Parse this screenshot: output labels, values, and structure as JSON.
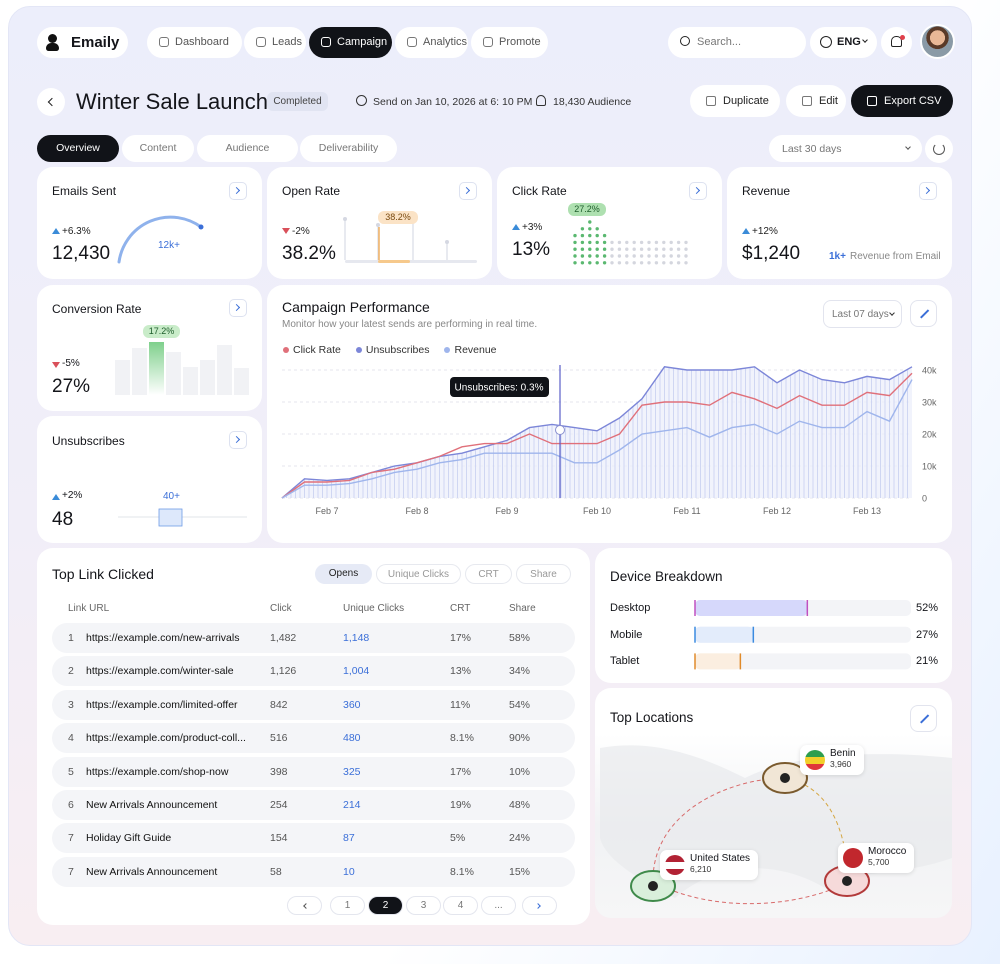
{
  "nav": {
    "brand": "Emaily",
    "items": [
      "Dashboard",
      "Leads",
      "Campaign",
      "Analytics",
      "Promote"
    ],
    "search": "Search...",
    "language": "ENG"
  },
  "header": {
    "title": "Winter Sale Launch",
    "status": "Completed",
    "schedule": "Send on Jan 10, 2026 at 6: 10 PM",
    "audience": "18,430 Audience",
    "actions": [
      "Duplicate",
      "Edit",
      "Export CSV"
    ]
  },
  "tabs": [
    "Overview",
    "Content",
    "Audience",
    "Deliverability"
  ],
  "range": "Last 30 days",
  "kpis": [
    {
      "title": "Emails Sent",
      "change": "+6.3%",
      "value": "12,430",
      "gauge_label": "12k+"
    },
    {
      "title": "Open Rate",
      "change": "-2%",
      "value": "38.2%",
      "badge": "38.2%"
    },
    {
      "title": "Click Rate",
      "change": "+3%",
      "value": "13%",
      "badge": "27.2%"
    },
    {
      "title": "Revenue",
      "change": "+12%",
      "value": "$1,240",
      "note_value": "1k+",
      "note": "Revenue from Email"
    }
  ],
  "conversion": {
    "title": "Conversion Rate",
    "change": "-5%",
    "value": "27%",
    "badge": "17.2%"
  },
  "unsubscribes": {
    "title": "Unsubscribes",
    "change": "+2%",
    "value": "48",
    "marker": "40+"
  },
  "chart_data": {
    "type": "line",
    "title": "Campaign Performance",
    "subtitle": "Monitor how your latest sends are performing in real time.",
    "range": "Last 07 days",
    "categories": [
      null,
      null,
      "Feb 7",
      null,
      null,
      null,
      "Feb 8",
      null,
      null,
      null,
      "Feb 9",
      null,
      null,
      null,
      "Feb 10",
      null,
      null,
      null,
      "Feb 11",
      null,
      null,
      null,
      "Feb 12",
      null,
      null,
      null,
      "Feb 13",
      null,
      null
    ],
    "series": [
      {
        "name": "Click Rate",
        "color": "#e0707a",
        "values": [
          0,
          5000,
          5000,
          5500,
          8000,
          9000,
          11000,
          13000,
          16000,
          17000,
          17000,
          20000,
          17000,
          17000,
          17000,
          20000,
          29000,
          30000,
          30000,
          29000,
          33000,
          31000,
          28000,
          32000,
          29000,
          29000,
          33000,
          32000,
          39000
        ]
      },
      {
        "name": "Unsubscribes",
        "color": "#7c86d8",
        "values": [
          0,
          6000,
          5500,
          6000,
          8000,
          10000,
          11000,
          13000,
          14000,
          16000,
          18000,
          22000,
          23000,
          22000,
          21000,
          25000,
          31000,
          41000,
          40000,
          40000,
          40000,
          41000,
          36000,
          40000,
          37000,
          36000,
          38000,
          37000,
          41000
        ]
      },
      {
        "name": "Revenue",
        "color": "#9fb5ec",
        "values": [
          0,
          4000,
          4000,
          4500,
          6000,
          8000,
          9000,
          11000,
          12000,
          14000,
          14000,
          14000,
          14000,
          11000,
          11000,
          15000,
          20000,
          21000,
          22000,
          19000,
          22000,
          23000,
          20000,
          24000,
          22000,
          22000,
          27000,
          24000,
          37000
        ]
      }
    ],
    "ylim": [
      0,
      42000
    ],
    "yticks": [
      0,
      {
        "value": 10000,
        "label": "10k"
      },
      {
        "value": 20000,
        "label": "20k"
      },
      {
        "value": 30000,
        "label": "30k"
      },
      {
        "value": 40000,
        "label": "40k"
      }
    ],
    "grid": true,
    "tooltip": "Unsubscribes: 0.3%"
  },
  "top_links": {
    "title": "Top Link Clicked",
    "filters": [
      "Opens",
      "Unique Clicks",
      "CRT",
      "Share"
    ],
    "columns": [
      "Link URL",
      "Click",
      "Unique Clicks",
      "CRT",
      "Share"
    ],
    "rows": [
      [
        "1",
        "https://example.com/new-arrivals",
        "1,482",
        "1,148",
        "17%",
        "58%"
      ],
      [
        "2",
        "https://example.com/winter-sale",
        "1,126",
        "1,004",
        "13%",
        "34%"
      ],
      [
        "3",
        "https://example.com/limited-offer",
        "842",
        "360",
        "11%",
        "54%"
      ],
      [
        "4",
        "https://example.com/product-coll...",
        "516",
        "480",
        "8.1%",
        "90%"
      ],
      [
        "5",
        "https://example.com/shop-now",
        "398",
        "325",
        "17%",
        "10%"
      ],
      [
        "6",
        "New Arrivals Announcement",
        "254",
        "214",
        "19%",
        "48%"
      ],
      [
        "7",
        "Holiday Gift Guide",
        "154",
        "87",
        "5%",
        "24%"
      ],
      [
        "7",
        "New Arrivals Announcement",
        "58",
        "10",
        "8.1%",
        "15%"
      ]
    ],
    "pages": [
      "1",
      "2",
      "3",
      "4",
      "..."
    ]
  },
  "devices": {
    "title": "Device Breakdown",
    "categories": [
      "Desktop",
      "Mobile",
      "Tablet"
    ],
    "values": [
      52,
      27,
      21
    ],
    "value_labels": [
      "52%",
      "27%",
      "21%"
    ]
  },
  "locations": {
    "title": "Top Locations",
    "places": [
      {
        "name": "Benin",
        "value": "3,960"
      },
      {
        "name": "United States",
        "value": "6,210"
      },
      {
        "name": "Morocco",
        "value": "5,700"
      }
    ]
  }
}
